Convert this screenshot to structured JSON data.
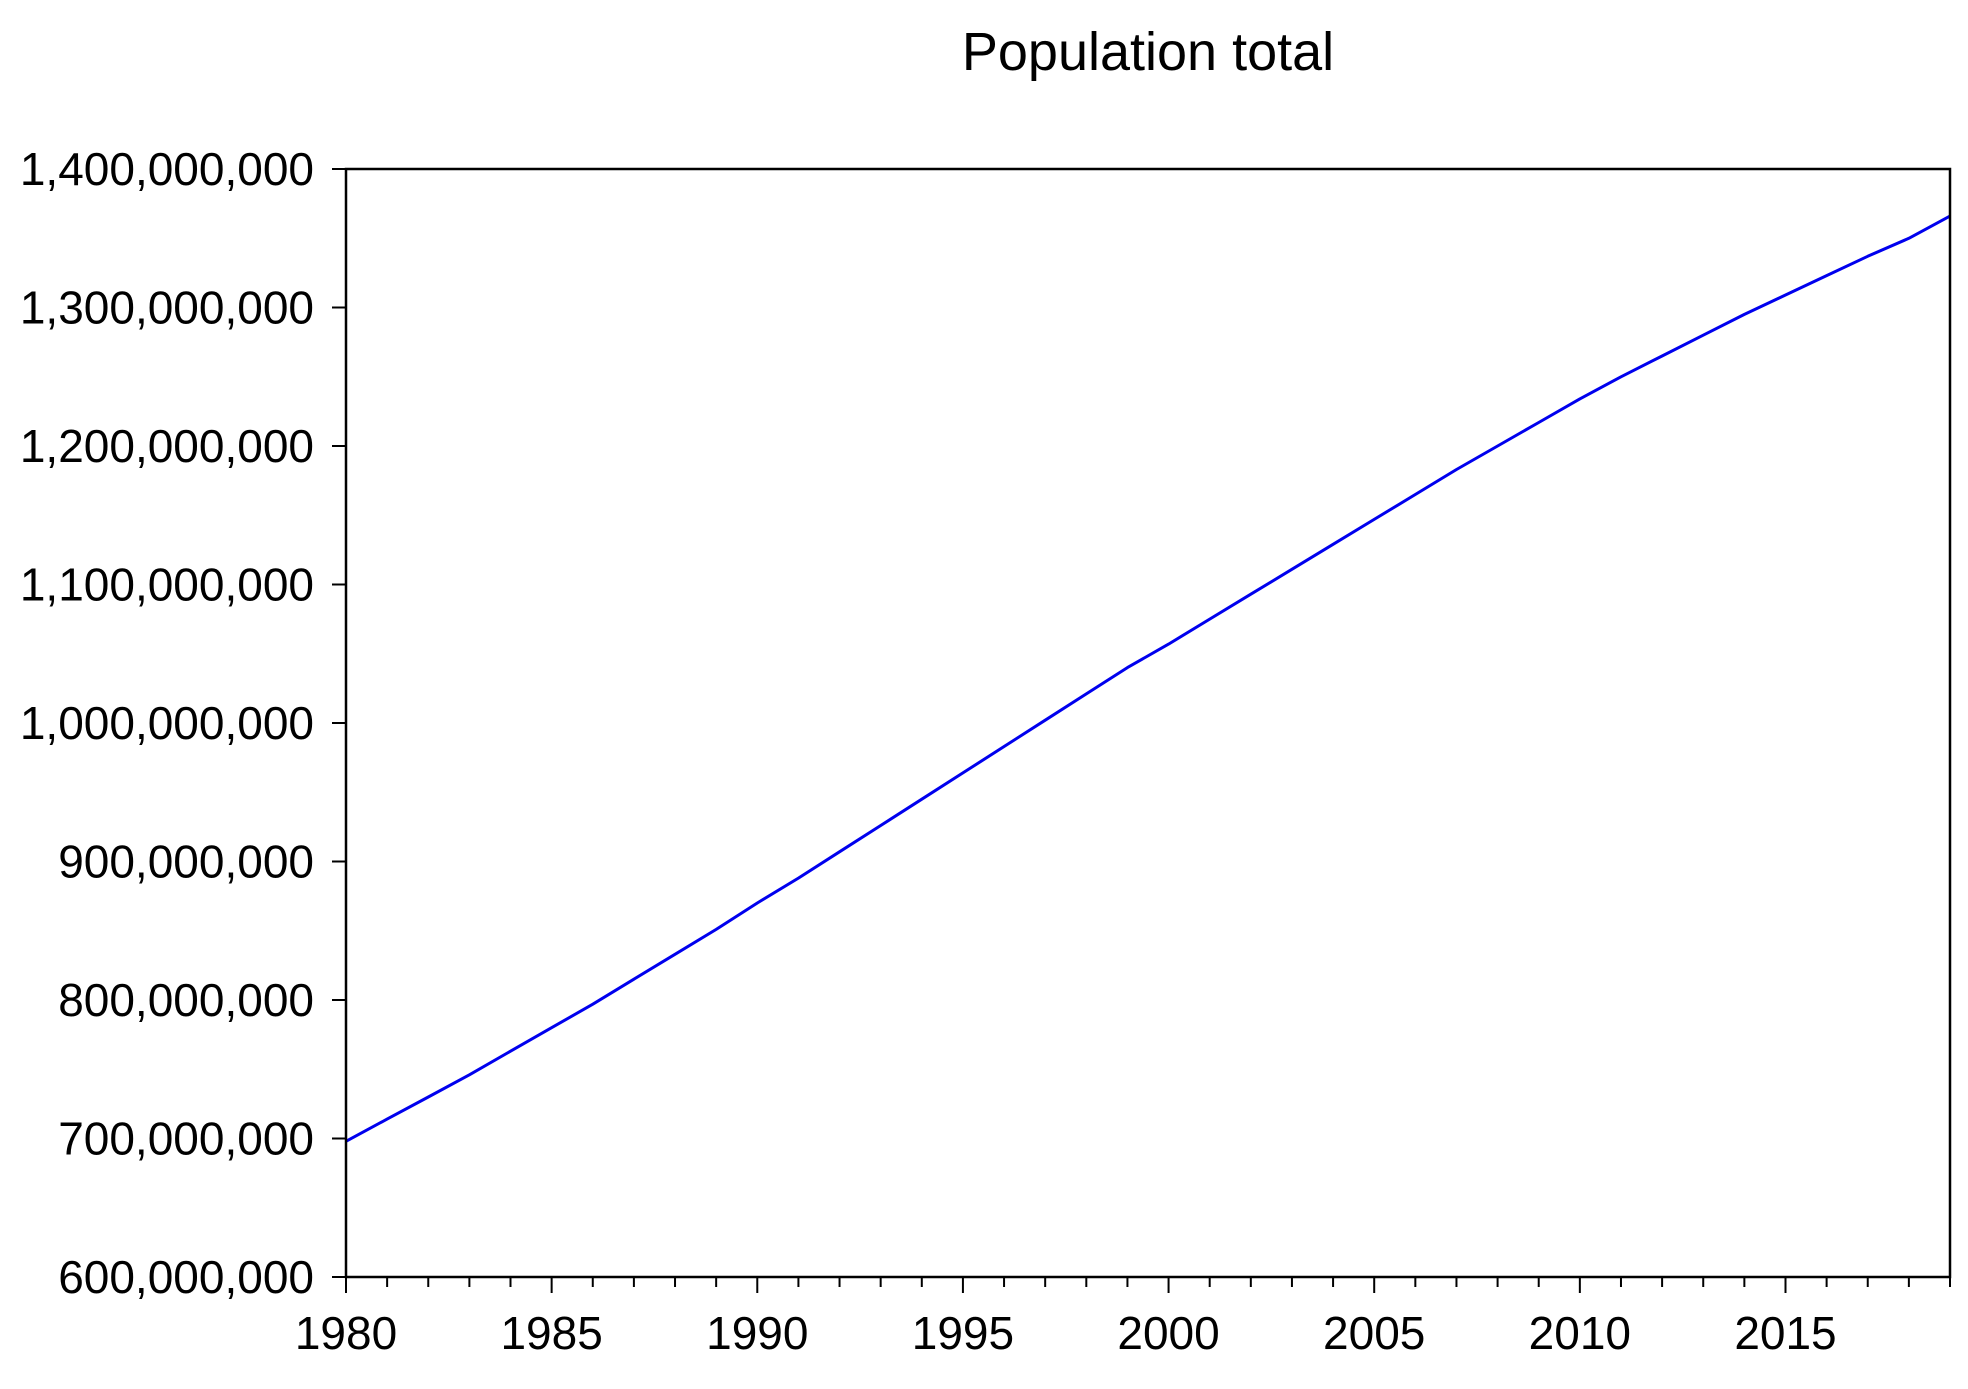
{
  "chart_data": {
    "type": "line",
    "title": "Population total",
    "xlabel": "",
    "ylabel": "",
    "xlim": [
      1980,
      2019
    ],
    "ylim": [
      600000000,
      1400000000
    ],
    "yticks": [
      600000000,
      700000000,
      800000000,
      900000000,
      1000000000,
      1100000000,
      1200000000,
      1300000000,
      1400000000
    ],
    "ytick_labels": [
      "600,000,000",
      "700,000,000",
      "800,000,000",
      "900,000,000",
      "1,000,000,000",
      "1,100,000,000",
      "1,200,000,000",
      "1,300,000,000",
      "1,400,000,000"
    ],
    "xticks_labeled": [
      1980,
      1985,
      1990,
      1995,
      2000,
      2005,
      2010,
      2015
    ],
    "xtick_labels": [
      "1980",
      "1985",
      "1990",
      "1995",
      "2000",
      "2005",
      "2010",
      "2015"
    ],
    "x_minor_step": 1,
    "grid": false,
    "legend": "none",
    "series": [
      {
        "color": "#0000ee",
        "x": [
          1980,
          1981,
          1982,
          1983,
          1984,
          1985,
          1986,
          1987,
          1988,
          1989,
          1990,
          1991,
          1992,
          1993,
          1994,
          1995,
          1996,
          1997,
          1998,
          1999,
          2000,
          2001,
          2002,
          2003,
          2004,
          2005,
          2006,
          2007,
          2008,
          2009,
          2010,
          2011,
          2012,
          2013,
          2014,
          2015,
          2016,
          2017,
          2018,
          2019
        ],
        "values": [
          698000000,
          714000000,
          730000000,
          746000000,
          763000000,
          780000000,
          797000000,
          815000000,
          833000000,
          851000000,
          870000000,
          888000000,
          907000000,
          926000000,
          945000000,
          964000000,
          983000000,
          1002000000,
          1021000000,
          1040000000,
          1057000000,
          1075000000,
          1093000000,
          1111000000,
          1129000000,
          1147000000,
          1165000000,
          1183000000,
          1200000000,
          1217000000,
          1234000000,
          1250000000,
          1265000000,
          1280000000,
          1295000000,
          1309000000,
          1323000000,
          1337000000,
          1350000000,
          1366000000
        ]
      }
    ]
  }
}
